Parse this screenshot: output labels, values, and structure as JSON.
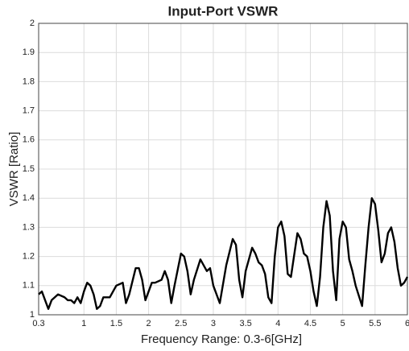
{
  "chart_data": {
    "type": "line",
    "title": "Input-Port VSWR",
    "x_label": "Frequency Range: 0.3-6[GHz]",
    "y_label": "VSWR [Ratio]",
    "x": [
      0.3,
      0.35,
      0.4,
      0.45,
      0.5,
      0.6,
      0.7,
      0.75,
      0.8,
      0.85,
      0.9,
      0.95,
      1.0,
      1.05,
      1.1,
      1.15,
      1.2,
      1.25,
      1.3,
      1.4,
      1.45,
      1.5,
      1.6,
      1.65,
      1.7,
      1.8,
      1.85,
      1.9,
      1.95,
      2.0,
      2.05,
      2.1,
      2.2,
      2.25,
      2.3,
      2.35,
      2.4,
      2.5,
      2.55,
      2.6,
      2.65,
      2.7,
      2.8,
      2.85,
      2.9,
      2.95,
      3.0,
      3.1,
      3.2,
      3.3,
      3.35,
      3.4,
      3.45,
      3.5,
      3.6,
      3.65,
      3.7,
      3.75,
      3.8,
      3.85,
      3.9,
      3.95,
      4.0,
      4.05,
      4.1,
      4.15,
      4.2,
      4.3,
      4.35,
      4.4,
      4.45,
      4.5,
      4.55,
      4.6,
      4.65,
      4.7,
      4.75,
      4.8,
      4.85,
      4.9,
      4.95,
      5.0,
      5.05,
      5.1,
      5.15,
      5.2,
      5.3,
      5.35,
      5.4,
      5.45,
      5.5,
      5.55,
      5.6,
      5.65,
      5.7,
      5.75,
      5.8,
      5.85,
      5.9,
      5.95,
      6.0
    ],
    "series": [
      {
        "name": "VSWR",
        "color": "#000000",
        "values": [
          1.07,
          1.08,
          1.05,
          1.02,
          1.05,
          1.07,
          1.06,
          1.05,
          1.05,
          1.04,
          1.06,
          1.04,
          1.08,
          1.11,
          1.1,
          1.07,
          1.02,
          1.03,
          1.06,
          1.06,
          1.08,
          1.1,
          1.11,
          1.04,
          1.07,
          1.16,
          1.16,
          1.12,
          1.05,
          1.08,
          1.11,
          1.11,
          1.12,
          1.15,
          1.12,
          1.04,
          1.1,
          1.21,
          1.2,
          1.15,
          1.07,
          1.12,
          1.19,
          1.17,
          1.15,
          1.16,
          1.1,
          1.04,
          1.17,
          1.26,
          1.24,
          1.12,
          1.06,
          1.15,
          1.23,
          1.21,
          1.18,
          1.17,
          1.14,
          1.06,
          1.04,
          1.2,
          1.3,
          1.32,
          1.27,
          1.14,
          1.13,
          1.28,
          1.26,
          1.21,
          1.2,
          1.15,
          1.08,
          1.03,
          1.13,
          1.3,
          1.39,
          1.34,
          1.15,
          1.05,
          1.26,
          1.32,
          1.3,
          1.19,
          1.15,
          1.1,
          1.03,
          1.17,
          1.3,
          1.4,
          1.38,
          1.29,
          1.18,
          1.21,
          1.28,
          1.3,
          1.25,
          1.16,
          1.1,
          1.11,
          1.13
        ]
      }
    ],
    "xlim": [
      0.3,
      6
    ],
    "xticks": [
      0.3,
      1,
      1.5,
      2,
      2.5,
      3,
      3.5,
      4,
      4.5,
      5,
      5.5,
      6
    ],
    "ylim": [
      1,
      2
    ],
    "yticks": [
      1,
      1.1,
      1.2,
      1.3,
      1.4,
      1.5,
      1.6,
      1.7,
      1.8,
      1.9,
      2
    ],
    "grid": true
  }
}
